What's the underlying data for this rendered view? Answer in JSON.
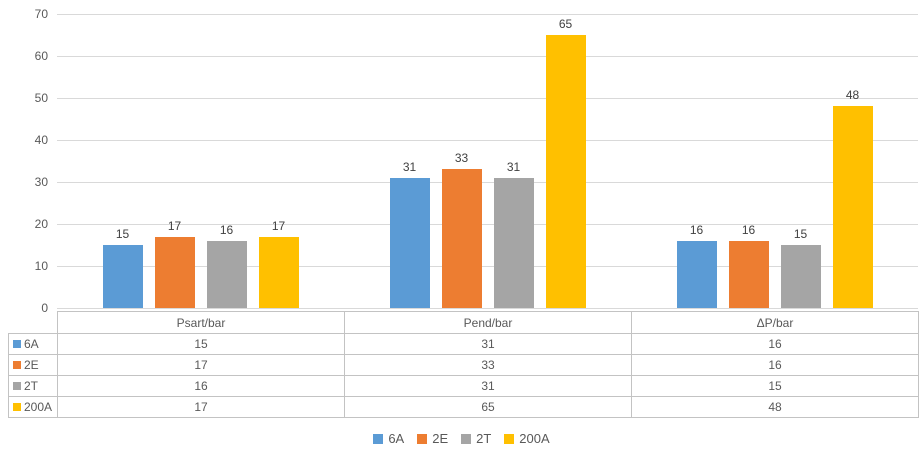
{
  "chart_data": {
    "type": "bar",
    "title": "",
    "xlabel": "",
    "ylabel": "",
    "categories": [
      "Psart/bar",
      "Pend/bar",
      "ΔP/bar"
    ],
    "series": [
      {
        "name": "6A",
        "color": "#5b9bd5",
        "values": [
          15,
          31,
          16
        ]
      },
      {
        "name": "2E",
        "color": "#ed7d31",
        "values": [
          17,
          33,
          16
        ]
      },
      {
        "name": "2T",
        "color": "#a5a5a5",
        "values": [
          16,
          31,
          15
        ]
      },
      {
        "name": "200A",
        "color": "#ffc000",
        "values": [
          17,
          65,
          48
        ]
      }
    ],
    "ylim": [
      0,
      70
    ],
    "yticks": [
      0,
      10,
      20,
      30,
      40,
      50,
      60,
      70
    ],
    "grid": true,
    "data_labels": true,
    "legend_position": "bottom",
    "data_table_shown": true
  },
  "colors": {
    "gridline": "#d9d9d9",
    "table_border": "#c3c3c3",
    "text": "#595959",
    "background": "#ffffff"
  }
}
